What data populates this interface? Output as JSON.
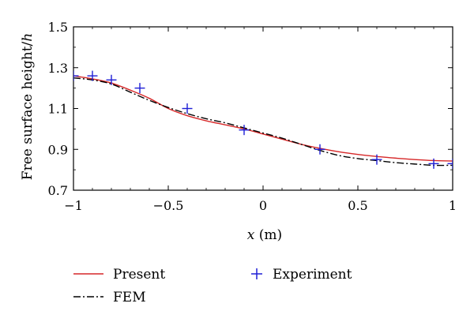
{
  "chart_data": {
    "type": "line",
    "xlabel": "x (m)",
    "ylabel": "Free surface height/h",
    "xlim": [
      -1,
      1
    ],
    "ylim": [
      0.7,
      1.5
    ],
    "xticks": [
      -1,
      -0.5,
      0,
      0.5,
      1
    ],
    "xtick_labels": [
      "−1",
      "−0.5",
      "0",
      "0.5",
      "1"
    ],
    "yticks": [
      0.7,
      0.9,
      1.1,
      1.3,
      1.5
    ],
    "ytick_labels": [
      "0.7",
      "0.9",
      "1.1",
      "1.3",
      "1.5"
    ],
    "grid": false,
    "legend_position": "below-plot",
    "series": [
      {
        "name": "Present",
        "style": "solid-line",
        "color": "#d62728",
        "x": [
          -1,
          -0.9,
          -0.8,
          -0.7,
          -0.6,
          -0.5,
          -0.4,
          -0.3,
          -0.2,
          -0.1,
          0,
          0.1,
          0.2,
          0.3,
          0.4,
          0.5,
          0.6,
          0.7,
          0.8,
          0.9,
          1
        ],
        "y": [
          1.26,
          1.245,
          1.225,
          1.19,
          1.15,
          1.1,
          1.065,
          1.04,
          1.02,
          1.0,
          0.975,
          0.95,
          0.925,
          0.905,
          0.888,
          0.875,
          0.865,
          0.857,
          0.85,
          0.845,
          0.843
        ]
      },
      {
        "name": "FEM",
        "style": "dash-dot-line",
        "color": "#000000",
        "x": [
          -1,
          -0.9,
          -0.8,
          -0.7,
          -0.6,
          -0.5,
          -0.4,
          -0.3,
          -0.2,
          -0.1,
          0,
          0.1,
          0.2,
          0.3,
          0.4,
          0.5,
          0.6,
          0.7,
          0.8,
          0.9,
          1
        ],
        "y": [
          1.25,
          1.24,
          1.22,
          1.18,
          1.14,
          1.105,
          1.075,
          1.05,
          1.03,
          1.005,
          0.98,
          0.955,
          0.925,
          0.895,
          0.87,
          0.855,
          0.845,
          0.835,
          0.828,
          0.822,
          0.822
        ]
      },
      {
        "name": "Experiment",
        "style": "plus-marker",
        "color": "#1f1fd6",
        "x": [
          -1,
          -0.9,
          -0.8,
          -0.65,
          -0.4,
          -0.1,
          0.3,
          0.6,
          0.9,
          1
        ],
        "y": [
          1.26,
          1.26,
          1.24,
          1.2,
          1.1,
          0.995,
          0.9,
          0.85,
          0.83,
          0.83
        ]
      }
    ]
  }
}
